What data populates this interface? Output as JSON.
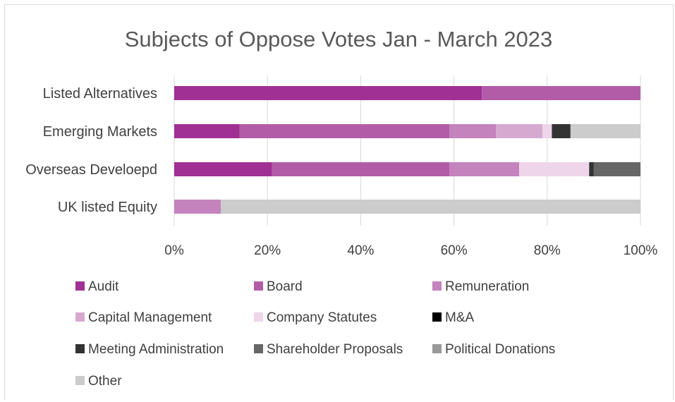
{
  "chart_data": {
    "type": "bar",
    "orientation": "horizontal",
    "stacked": "percent",
    "title": "Subjects of Oppose Votes Jan - March 2023",
    "categories": [
      "Listed Alternatives",
      "Emerging Markets",
      "Overseas Develoepd",
      "UK listed Equity"
    ],
    "xlim": [
      0,
      100
    ],
    "x_ticks": [
      "0%",
      "20%",
      "40%",
      "60%",
      "80%",
      "100%"
    ],
    "grid": "vertical",
    "legend_position": "bottom",
    "series": [
      {
        "name": "Audit",
        "color": "#a03094",
        "values": [
          66,
          14,
          21,
          0
        ]
      },
      {
        "name": "Board",
        "color": "#b25ca8",
        "values": [
          34,
          45,
          38,
          0
        ]
      },
      {
        "name": "Remuneration",
        "color": "#c483bc",
        "values": [
          0,
          10,
          15,
          10
        ]
      },
      {
        "name": "Capital Management",
        "color": "#d6aad0",
        "values": [
          0,
          10,
          0,
          0
        ]
      },
      {
        "name": "Company Statutes",
        "color": "#eed5e9",
        "values": [
          0,
          2,
          15,
          0
        ]
      },
      {
        "name": "M&A",
        "color": "#000000",
        "values": [
          0,
          0,
          0,
          0
        ]
      },
      {
        "name": "Meeting Administration",
        "color": "#333333",
        "values": [
          0,
          4,
          1,
          0
        ]
      },
      {
        "name": "Shareholder Proposals",
        "color": "#666666",
        "values": [
          0,
          0,
          10,
          0
        ]
      },
      {
        "name": "Political Donations",
        "color": "#999999",
        "values": [
          0,
          0,
          0,
          0
        ]
      },
      {
        "name": "Other",
        "color": "#cccccc",
        "values": [
          0,
          15,
          0,
          90
        ]
      }
    ]
  }
}
